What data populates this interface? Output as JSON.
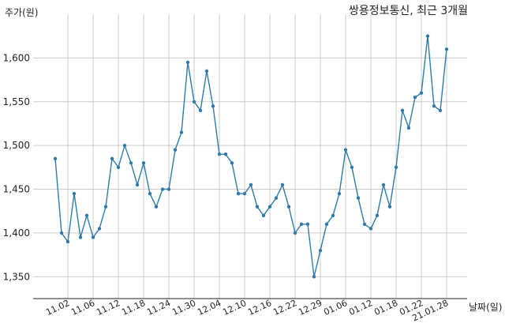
{
  "chart_data": {
    "type": "line",
    "title": "쌍용정보통신, 최근 3개월",
    "ylabel": "주가(원)",
    "xlabel": "날짜(일)",
    "ylim": [
      1325,
      1650
    ],
    "yticks": [
      1350,
      1400,
      1450,
      1500,
      1550,
      1600
    ],
    "ytick_labels": [
      "1,350",
      "1,400",
      "1,450",
      "1,500",
      "1,550",
      "1,600"
    ],
    "xtick_labels": [
      "11.02",
      "11.06",
      "11.12",
      "11.18",
      "11.24",
      "11.30",
      "12.04",
      "12.10",
      "12.16",
      "12.22",
      "12.29",
      "01.06",
      "01.12",
      "01.18",
      "01.22",
      "21.01.28"
    ],
    "xtick_indices": [
      2,
      6,
      10,
      14,
      18,
      22,
      26,
      30,
      34,
      38,
      42,
      46,
      50,
      54,
      58,
      62
    ],
    "grid": true,
    "line_color": "#2e7bab",
    "series": [
      {
        "values": [
          1485,
          1400,
          1390,
          1445,
          1395,
          1420,
          1395,
          1405,
          1430,
          1485,
          1475,
          1500,
          1480,
          1455,
          1480,
          1445,
          1430,
          1450,
          1450,
          1495,
          1515,
          1595,
          1550,
          1540,
          1585,
          1545,
          1490,
          1490,
          1480,
          1445,
          1445,
          1455,
          1430,
          1420,
          1430,
          1440,
          1455,
          1430,
          1400,
          1410,
          1410,
          1350,
          1380,
          1410,
          1420,
          1445,
          1495,
          1475,
          1440,
          1410,
          1405,
          1420,
          1455,
          1430,
          1475,
          1540,
          1520,
          1555,
          1560,
          1625,
          1545,
          1540,
          1610
        ]
      }
    ]
  }
}
